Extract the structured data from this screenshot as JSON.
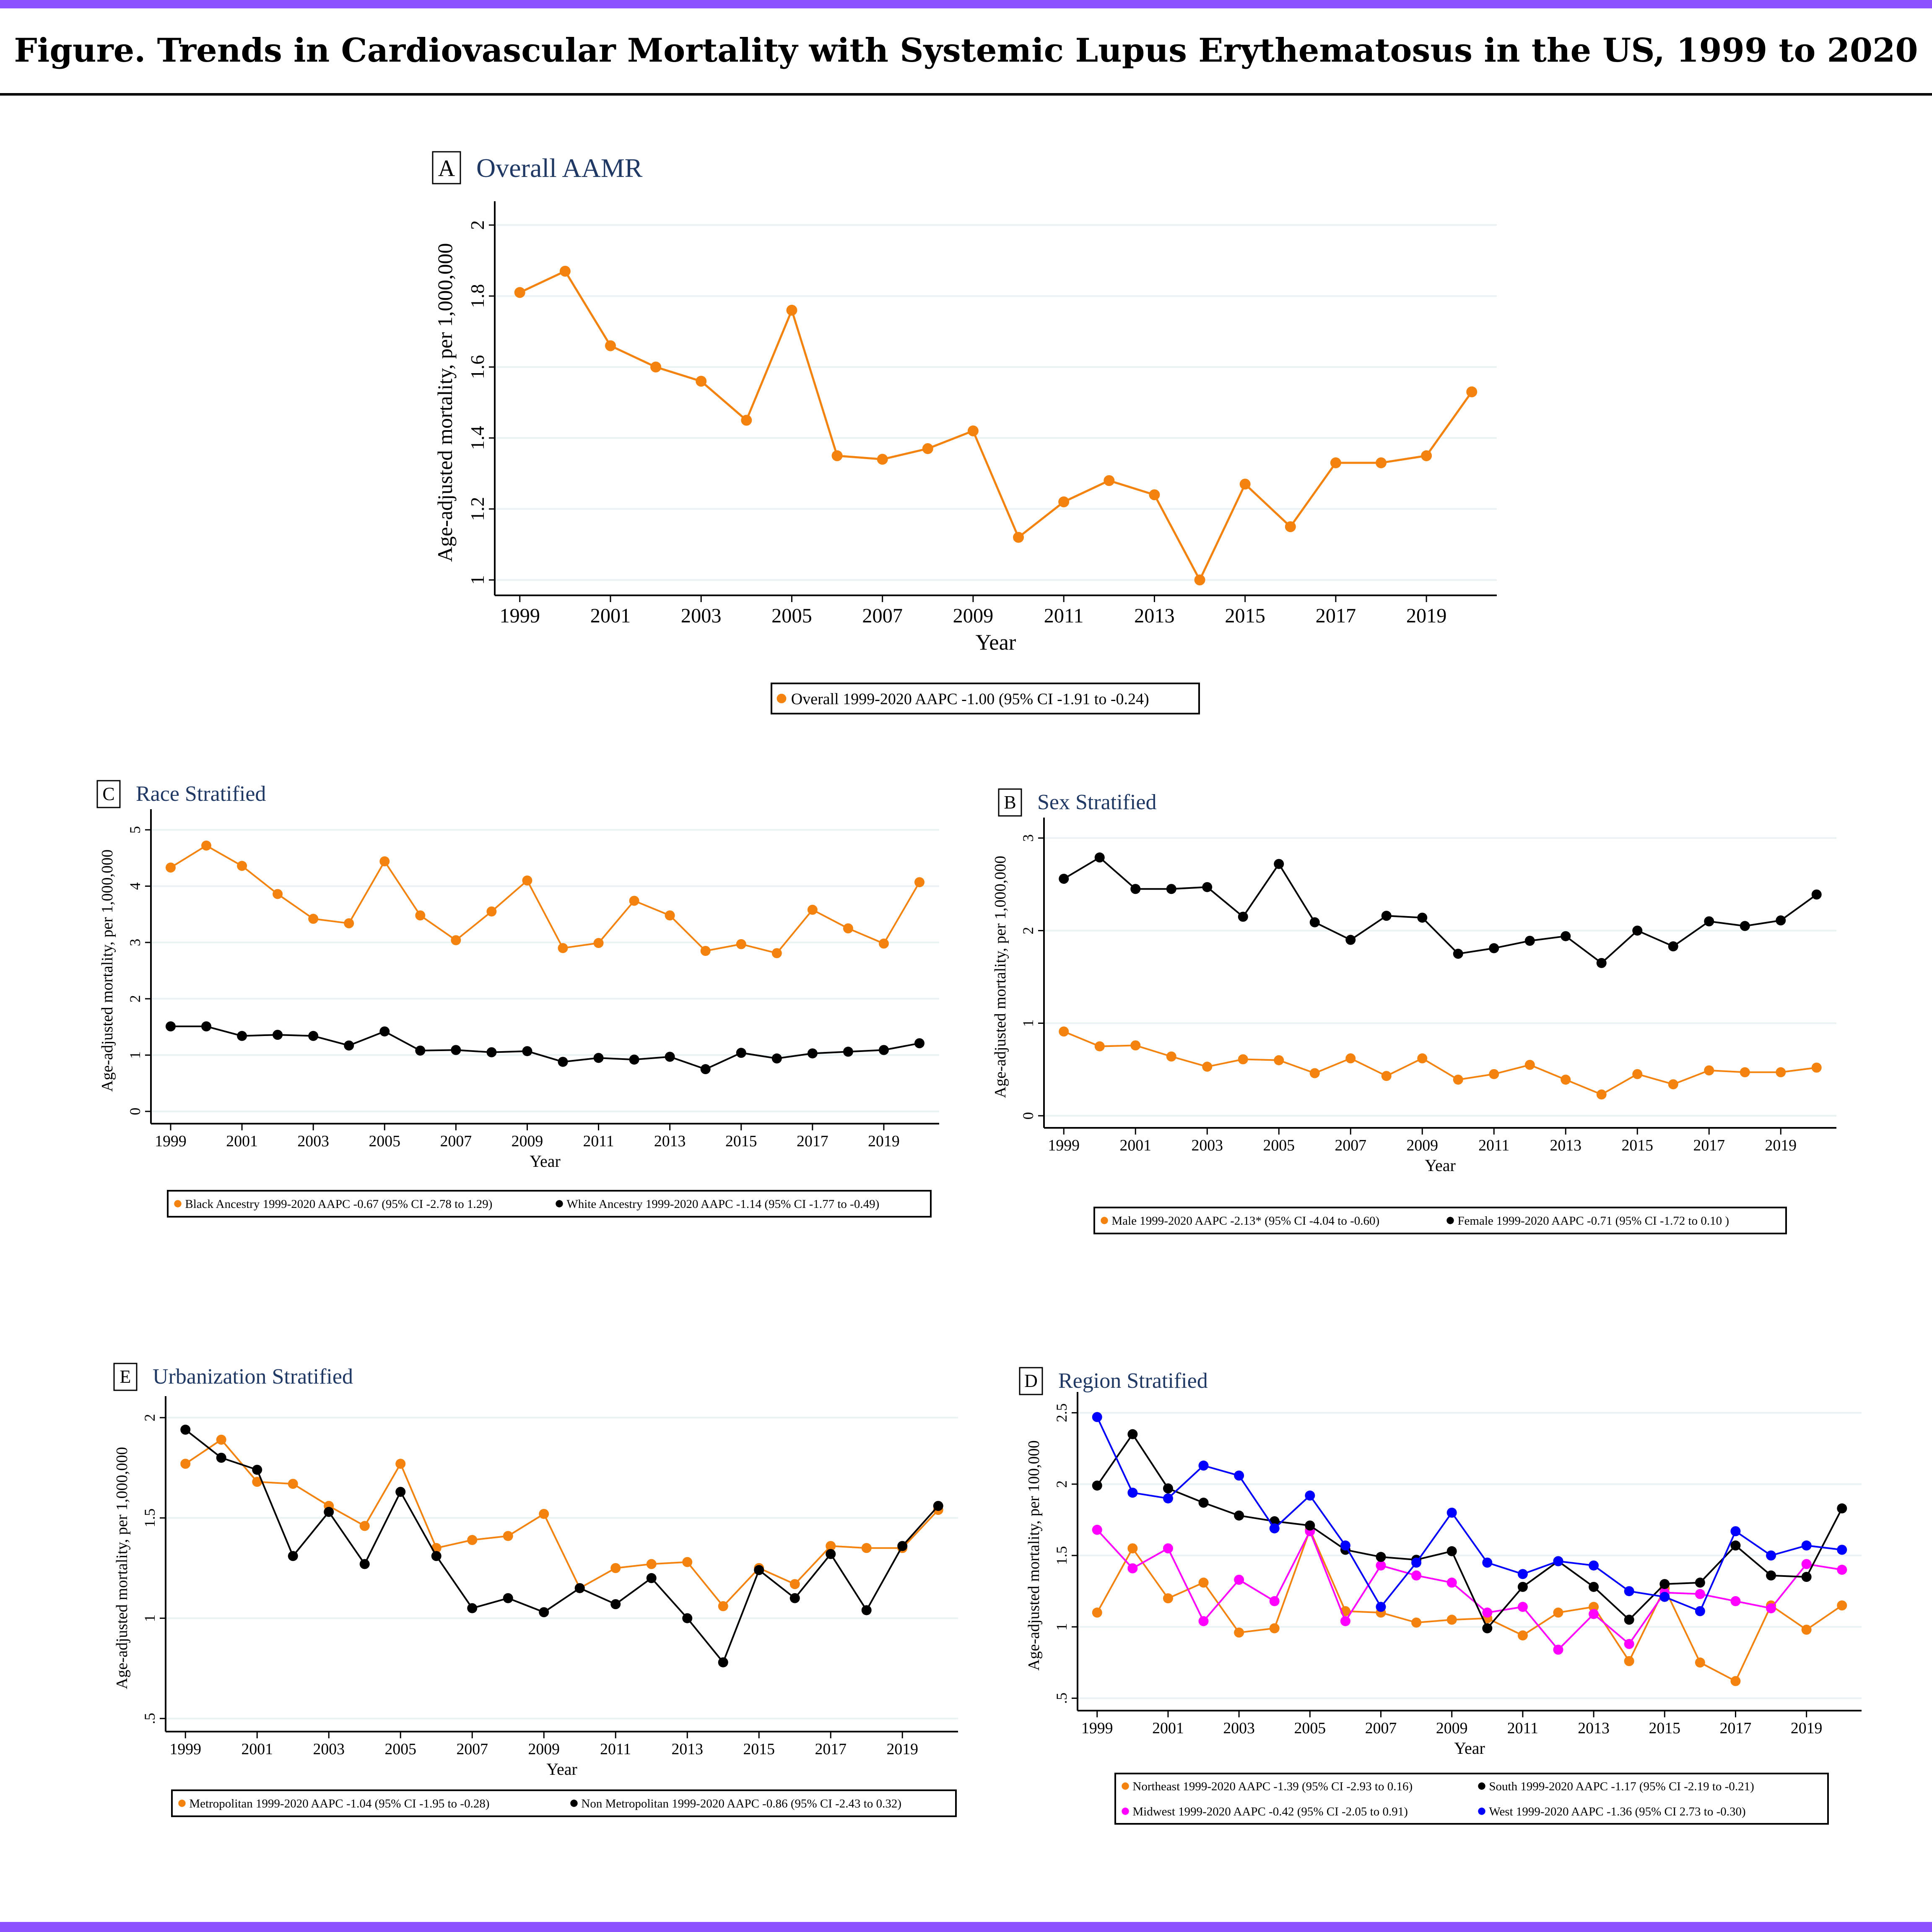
{
  "page": {
    "title": "Figure.  Trends in Cardiovascular Mortality with Systemic Lupus Erythematosus in the US, 1999 to 2020",
    "accent_color": "#8c52ff"
  },
  "chart_data": [
    {
      "id": "A",
      "type": "line",
      "letter": "A",
      "title": "Overall AAMR",
      "xlabel": "Year",
      "ylabel": "Age-adjusted mortality, per 1,000,000",
      "x": [
        1999,
        2000,
        2001,
        2002,
        2003,
        2004,
        2005,
        2006,
        2007,
        2008,
        2009,
        2010,
        2011,
        2012,
        2013,
        2014,
        2015,
        2016,
        2017,
        2018,
        2019,
        2020
      ],
      "xticks": [
        1999,
        2001,
        2003,
        2005,
        2007,
        2009,
        2011,
        2013,
        2015,
        2017,
        2019
      ],
      "ylim": [
        1,
        2
      ],
      "yticks": [
        1,
        1.2,
        1.4,
        1.6,
        1.8,
        2
      ],
      "ytick_labels": [
        "1",
        "1.2",
        "1.4",
        "1.6",
        "1.8",
        "2"
      ],
      "grid": true,
      "legend_position": "bottom",
      "series": [
        {
          "name": "Overall 1999-2020 AAPC -1.00 (95% CI -1.91 to -0.24)",
          "color": "#f4820f",
          "values": [
            1.81,
            1.87,
            1.66,
            1.6,
            1.56,
            1.45,
            1.76,
            1.35,
            1.34,
            1.37,
            1.42,
            1.12,
            1.22,
            1.28,
            1.24,
            1.0,
            1.27,
            1.15,
            1.33,
            1.33,
            1.35,
            1.53
          ]
        }
      ]
    },
    {
      "id": "C",
      "type": "line",
      "letter": "C",
      "title": "Race Stratified",
      "xlabel": "Year",
      "ylabel": "Age-adjusted mortality, per 1,000,000",
      "x": [
        1999,
        2000,
        2001,
        2002,
        2003,
        2004,
        2005,
        2006,
        2007,
        2008,
        2009,
        2010,
        2011,
        2012,
        2013,
        2014,
        2015,
        2016,
        2017,
        2018,
        2019,
        2020
      ],
      "xticks": [
        1999,
        2001,
        2003,
        2005,
        2007,
        2009,
        2011,
        2013,
        2015,
        2017,
        2019
      ],
      "ylim": [
        0,
        5
      ],
      "yticks": [
        0,
        1,
        2,
        3,
        4,
        5
      ],
      "ytick_labels": [
        "0",
        "1",
        "2",
        "3",
        "4",
        "5"
      ],
      "grid": true,
      "legend_position": "bottom",
      "series": [
        {
          "name": "Black Ancestry 1999-2020 AAPC -0.67 (95% CI -2.78 to 1.29)",
          "color": "#f4820f",
          "values": [
            4.33,
            4.72,
            4.36,
            3.86,
            3.42,
            3.34,
            4.44,
            3.48,
            3.04,
            3.55,
            4.1,
            2.9,
            2.99,
            3.74,
            3.48,
            2.85,
            2.97,
            2.81,
            3.58,
            3.25,
            2.98,
            4.07
          ]
        },
        {
          "name": "White Ancestry 1999-2020 AAPC -1.14 (95% CI -1.77 to -0.49)",
          "color": "#000000",
          "values": [
            1.51,
            1.51,
            1.34,
            1.36,
            1.34,
            1.17,
            1.42,
            1.08,
            1.09,
            1.05,
            1.07,
            0.88,
            0.95,
            0.92,
            0.97,
            0.75,
            1.04,
            0.94,
            1.03,
            1.06,
            1.09,
            1.21
          ]
        }
      ]
    },
    {
      "id": "B",
      "type": "line",
      "letter": "B",
      "title": "Sex Stratified",
      "xlabel": "Year",
      "ylabel": "Age-adjusted mortality, per 1,000,000",
      "x": [
        1999,
        2000,
        2001,
        2002,
        2003,
        2004,
        2005,
        2006,
        2007,
        2008,
        2009,
        2010,
        2011,
        2012,
        2013,
        2014,
        2015,
        2016,
        2017,
        2018,
        2019,
        2020
      ],
      "xticks": [
        1999,
        2001,
        2003,
        2005,
        2007,
        2009,
        2011,
        2013,
        2015,
        2017,
        2019
      ],
      "ylim": [
        0,
        3
      ],
      "yticks": [
        0,
        1,
        2,
        3
      ],
      "ytick_labels": [
        "0",
        "1",
        "2",
        "3"
      ],
      "grid": true,
      "legend_position": "bottom",
      "series": [
        {
          "name": "Male 1999-2020 AAPC -2.13* (95% CI -4.04 to -0.60)",
          "color": "#f4820f",
          "values": [
            0.91,
            0.75,
            0.76,
            0.64,
            0.53,
            0.61,
            0.6,
            0.46,
            0.62,
            0.43,
            0.62,
            0.39,
            0.45,
            0.55,
            0.39,
            0.23,
            0.45,
            0.34,
            0.49,
            0.47,
            0.47,
            0.52
          ]
        },
        {
          "name": "Female 1999-2020 AAPC -0.71 (95% CI -1.72 to 0.10 )",
          "color": "#000000",
          "values": [
            2.56,
            2.79,
            2.45,
            2.45,
            2.47,
            2.15,
            2.72,
            2.09,
            1.9,
            2.16,
            2.14,
            1.75,
            1.81,
            1.89,
            1.94,
            1.65,
            2.0,
            1.83,
            2.1,
            2.05,
            2.11,
            2.39
          ]
        }
      ]
    },
    {
      "id": "E",
      "type": "line",
      "letter": "E",
      "title": "Urbanization Stratified",
      "xlabel": "Year",
      "ylabel": "Age-adjusted mortality, per 1,000,000",
      "x": [
        1999,
        2000,
        2001,
        2002,
        2003,
        2004,
        2005,
        2006,
        2007,
        2008,
        2009,
        2010,
        2011,
        2012,
        2013,
        2014,
        2015,
        2016,
        2017,
        2018,
        2019,
        2020
      ],
      "xticks": [
        1999,
        2001,
        2003,
        2005,
        2007,
        2009,
        2011,
        2013,
        2015,
        2017,
        2019
      ],
      "ylim": [
        0.5,
        2
      ],
      "yticks": [
        0.5,
        1,
        1.5,
        2
      ],
      "ytick_labels": [
        ".5",
        "1",
        "1.5",
        "2"
      ],
      "grid": true,
      "legend_position": "bottom",
      "series": [
        {
          "name": "Metropolitan 1999-2020 AAPC -1.04 (95% CI -1.95 to -0.28)",
          "color": "#f4820f",
          "values": [
            1.77,
            1.89,
            1.68,
            1.67,
            1.56,
            1.46,
            1.77,
            1.35,
            1.39,
            1.41,
            1.52,
            1.15,
            1.25,
            1.27,
            1.28,
            1.06,
            1.25,
            1.17,
            1.36,
            1.35,
            1.35,
            1.54
          ]
        },
        {
          "name": "Non Metropolitan 1999-2020 AAPC -0.86 (95% CI -2.43 to 0.32)",
          "color": "#000000",
          "values": [
            1.94,
            1.8,
            1.74,
            1.31,
            1.53,
            1.27,
            1.63,
            1.31,
            1.05,
            1.1,
            1.03,
            1.15,
            1.07,
            1.2,
            1.0,
            0.78,
            1.24,
            1.1,
            1.32,
            1.04,
            1.36,
            1.56
          ]
        }
      ]
    },
    {
      "id": "D",
      "type": "line",
      "letter": "D",
      "title": "Region Stratified",
      "xlabel": "Year",
      "ylabel": "Age-adjusted mortality, per 100,000",
      "x": [
        1999,
        2000,
        2001,
        2002,
        2003,
        2004,
        2005,
        2006,
        2007,
        2008,
        2009,
        2010,
        2011,
        2012,
        2013,
        2014,
        2015,
        2016,
        2017,
        2018,
        2019,
        2020
      ],
      "xticks": [
        1999,
        2001,
        2003,
        2005,
        2007,
        2009,
        2011,
        2013,
        2015,
        2017,
        2019
      ],
      "ylim": [
        0.5,
        2.5
      ],
      "yticks": [
        0.5,
        1,
        1.5,
        2,
        2.5
      ],
      "ytick_labels": [
        ".5",
        "1",
        "1.5",
        "2",
        "2.5"
      ],
      "grid": true,
      "legend_position": "bottom",
      "series": [
        {
          "name": "Northeast 1999-2020 AAPC -1.39 (95% CI -2.93 to 0.16)",
          "color": "#f4820f",
          "values": [
            1.1,
            1.55,
            1.2,
            1.31,
            0.96,
            0.99,
            1.68,
            1.11,
            1.1,
            1.03,
            1.05,
            1.06,
            0.94,
            1.1,
            1.14,
            0.76,
            1.27,
            0.75,
            0.62,
            1.15,
            0.98,
            1.15
          ]
        },
        {
          "name": "Midwest 1999-2020 AAPC -0.42 (95% CI -2.05 to 0.91)",
          "color": "#ff00ff",
          "values": [
            1.68,
            1.41,
            1.55,
            1.04,
            1.33,
            1.18,
            1.67,
            1.04,
            1.43,
            1.36,
            1.31,
            1.1,
            1.14,
            0.84,
            1.09,
            0.88,
            1.24,
            1.23,
            1.18,
            1.13,
            1.44,
            1.4
          ]
        },
        {
          "name": "South 1999-2020 AAPC -1.17 (95% CI -2.19 to -0.21)",
          "color": "#000000",
          "values": [
            1.99,
            2.35,
            1.97,
            1.87,
            1.78,
            1.74,
            1.71,
            1.54,
            1.49,
            1.47,
            1.53,
            0.99,
            1.28,
            1.46,
            1.28,
            1.05,
            1.3,
            1.31,
            1.57,
            1.36,
            1.35,
            1.83
          ]
        },
        {
          "name": "West 1999-2020 AAPC -1.36 (95% CI 2.73 to -0.30)",
          "color": "#0000ff",
          "values": [
            2.47,
            1.94,
            1.9,
            2.13,
            2.06,
            1.69,
            1.92,
            1.57,
            1.14,
            1.45,
            1.8,
            1.45,
            1.37,
            1.46,
            1.43,
            1.25,
            1.21,
            1.11,
            1.67,
            1.5,
            1.57,
            1.54
          ]
        }
      ]
    }
  ]
}
